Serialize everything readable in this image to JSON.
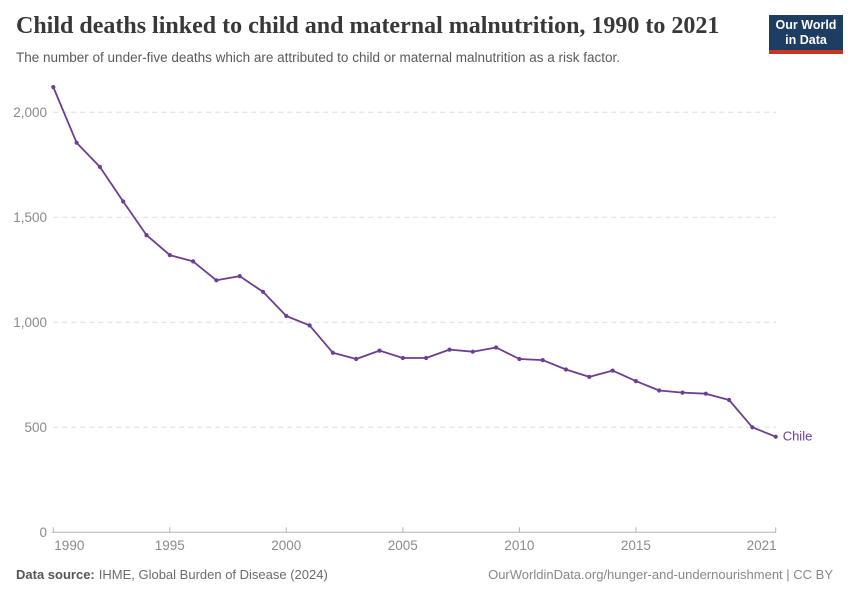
{
  "header": {
    "title": "Child deaths linked to child and maternal malnutrition, 1990 to 2021",
    "subtitle": "The number of under-five deaths which are attributed to child or maternal malnutrition as a risk factor.",
    "logo": {
      "line1": "Our World",
      "line2": "in Data"
    }
  },
  "chart_data": {
    "type": "line",
    "title": "Child deaths linked to child and maternal malnutrition, 1990 to 2021",
    "entity_label": "Chile",
    "x": [
      1990,
      1991,
      1992,
      1993,
      1994,
      1995,
      1996,
      1997,
      1998,
      1999,
      2000,
      2001,
      2002,
      2003,
      2004,
      2005,
      2006,
      2007,
      2008,
      2009,
      2010,
      2011,
      2012,
      2013,
      2014,
      2015,
      2016,
      2017,
      2018,
      2019,
      2020,
      2021
    ],
    "series": [
      {
        "name": "Chile",
        "values": [
          2120,
          1855,
          1740,
          1575,
          1415,
          1320,
          1290,
          1200,
          1220,
          1145,
          1030,
          985,
          855,
          825,
          865,
          830,
          830,
          870,
          860,
          880,
          825,
          820,
          775,
          740,
          770,
          720,
          675,
          665,
          660,
          630,
          500,
          455
        ]
      }
    ],
    "x_ticks": [
      1990,
      1995,
      2000,
      2005,
      2010,
      2015,
      2021
    ],
    "y_ticks": [
      {
        "value": 0,
        "label": "0"
      },
      {
        "value": 500,
        "label": "500"
      },
      {
        "value": 1000,
        "label": "1,000"
      },
      {
        "value": 1500,
        "label": "1,500"
      },
      {
        "value": 2000,
        "label": "2,000"
      }
    ],
    "xlim": [
      1990,
      2021
    ],
    "ylim": [
      0,
      2120
    ],
    "grid": true,
    "legend_position": "line-end-label",
    "colors": {
      "line": "#6d3e91",
      "grid": "#dedede",
      "axis": "#b3b3b3",
      "tick_label": "#8b8b8b"
    }
  },
  "footer": {
    "source_label": "Data source:",
    "source_value": "IHME, Global Burden of Disease (2024)",
    "credit": "OurWorldinData.org/hunger-and-undernourishment | CC BY"
  }
}
